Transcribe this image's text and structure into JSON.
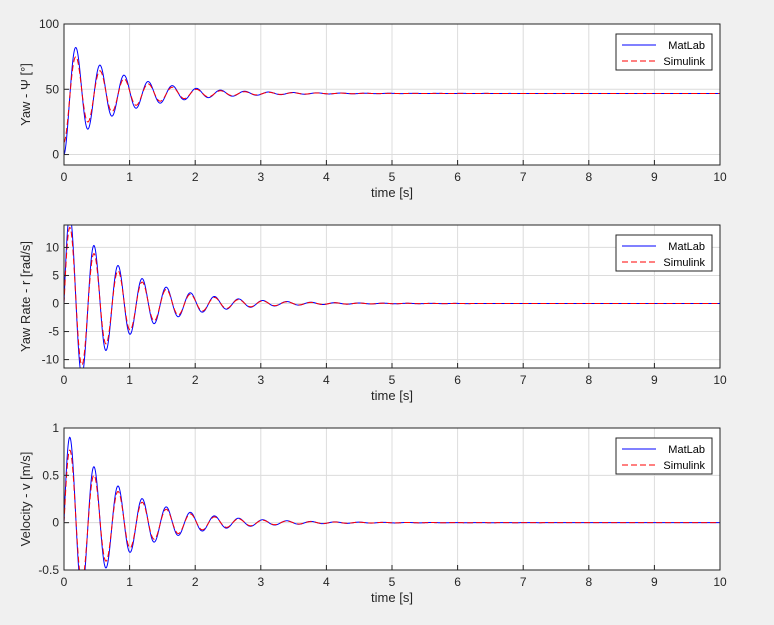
{
  "figure": {
    "background": "#f0f0f0"
  },
  "legend_entries": [
    "MatLab",
    "Simulink"
  ],
  "chart_data": [
    {
      "type": "line",
      "title": "",
      "xlabel": "time [s]",
      "ylabel": "Yaw - Ψ [°]",
      "xlim": [
        0,
        10
      ],
      "ylim": [
        -8,
        100
      ],
      "xticks": [
        0,
        1,
        2,
        3,
        4,
        5,
        6,
        7,
        8,
        9,
        10
      ],
      "yticks": [
        0,
        50,
        100
      ],
      "grid": true,
      "legend_position": "top-right",
      "signal": {
        "kind": "step",
        "final": 46.8,
        "amp1": 47,
        "amp2": 40,
        "omega": 17.1,
        "decay": 1.15
      },
      "series": [
        {
          "name": "MatLab",
          "color": "#0000ff",
          "style": "solid",
          "amp_scale": 1.0,
          "phase": 0.0
        },
        {
          "name": "Simulink",
          "color": "#ff0000",
          "style": "dashed",
          "amp_scale": 0.8,
          "phase": 0.1
        }
      ]
    },
    {
      "type": "line",
      "title": "",
      "xlabel": "time [s]",
      "ylabel": "Yaw Rate - r [rad/s]",
      "xlim": [
        0,
        10
      ],
      "ylim": [
        -11.5,
        14
      ],
      "xticks": [
        0,
        1,
        2,
        3,
        4,
        5,
        6,
        7,
        8,
        9,
        10
      ],
      "yticks": [
        -10,
        -5,
        0,
        5,
        10
      ],
      "grid": true,
      "legend_position": "top-right",
      "signal": {
        "kind": "sine",
        "final": 0,
        "amp1": 17.5,
        "amp2": 17.5,
        "omega": 17.1,
        "decay": 1.15
      },
      "series": [
        {
          "name": "MatLab",
          "color": "#0000ff",
          "style": "solid",
          "amp_scale": 1.0,
          "phase": 0.0
        },
        {
          "name": "Simulink",
          "color": "#ff0000",
          "style": "dashed",
          "amp_scale": 0.86,
          "phase": 0.1
        }
      ]
    },
    {
      "type": "line",
      "title": "",
      "xlabel": "time [s]",
      "ylabel": "Velocity - v [m/s]",
      "xlim": [
        0,
        10
      ],
      "ylim": [
        -0.5,
        1
      ],
      "xticks": [
        0,
        1,
        2,
        3,
        4,
        5,
        6,
        7,
        8,
        9,
        10
      ],
      "yticks": [
        -0.5,
        0,
        0.5,
        1
      ],
      "grid": true,
      "legend_position": "top-right",
      "signal": {
        "kind": "sine",
        "final": 0,
        "amp1": 1.0,
        "amp2": 1.0,
        "omega": 17.1,
        "decay": 1.15
      },
      "series": [
        {
          "name": "MatLab",
          "color": "#0000ff",
          "style": "solid",
          "amp_scale": 1.0,
          "phase": 0.0
        },
        {
          "name": "Simulink",
          "color": "#ff0000",
          "style": "dashed",
          "amp_scale": 0.85,
          "phase": 0.1
        }
      ]
    }
  ]
}
